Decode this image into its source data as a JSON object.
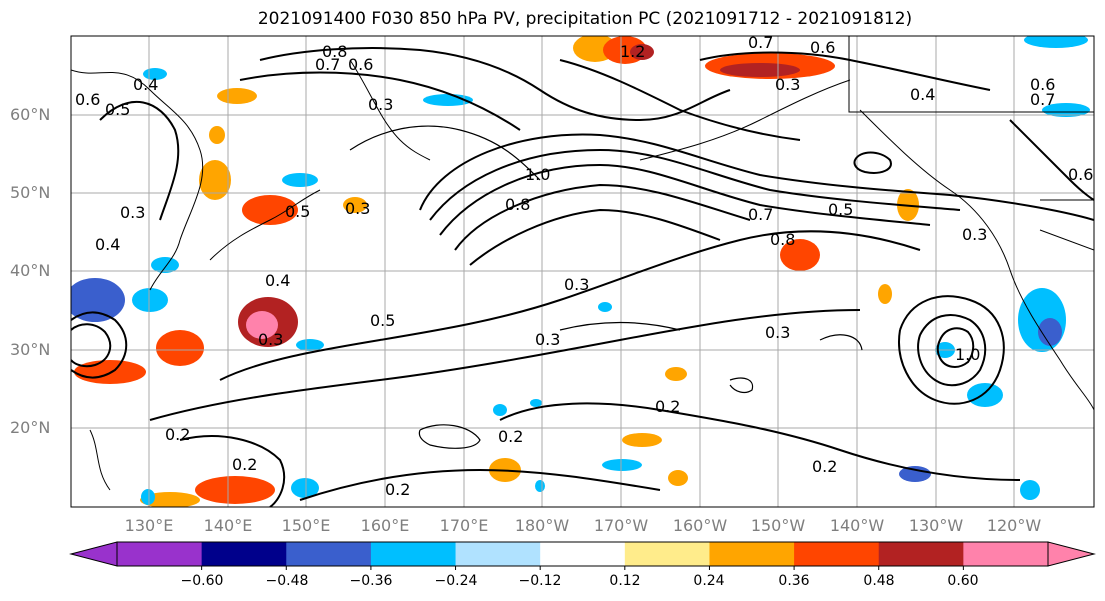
{
  "title": "2021091400 F030 850 hPa PV, precipitation PC (2021091712 - 2021091812)",
  "lat_labels": [
    "60°N",
    "50°N",
    "40°N",
    "30°N",
    "20°N"
  ],
  "lon_labels": [
    "130°E",
    "140°E",
    "150°E",
    "160°E",
    "170°E",
    "180°W",
    "170°W",
    "160°W",
    "150°W",
    "140°W",
    "130°W",
    "120°W"
  ],
  "contour_labels": [
    {
      "text": "0.8"
    },
    {
      "text": "0.7"
    },
    {
      "text": "0.6"
    },
    {
      "text": "1.2"
    },
    {
      "text": "0.7"
    },
    {
      "text": "0.6"
    },
    {
      "text": "0.3"
    },
    {
      "text": "0.3"
    },
    {
      "text": "0.4"
    },
    {
      "text": "0.6"
    },
    {
      "text": "0.5"
    },
    {
      "text": "0.4"
    },
    {
      "text": "0.8"
    },
    {
      "text": "1.0"
    },
    {
      "text": "0.7"
    },
    {
      "text": "0.5"
    },
    {
      "text": "0.3"
    },
    {
      "text": "0.5"
    },
    {
      "text": "0.3"
    },
    {
      "text": "0.8"
    },
    {
      "text": "0.4"
    },
    {
      "text": "0.3"
    },
    {
      "text": "0.5"
    },
    {
      "text": "0.3"
    },
    {
      "text": "0.3"
    },
    {
      "text": "0.3"
    },
    {
      "text": "1.0"
    },
    {
      "text": "0.2"
    },
    {
      "text": "0.2"
    },
    {
      "text": "0.2"
    },
    {
      "text": "0.2"
    },
    {
      "text": "0.2"
    },
    {
      "text": "0.2"
    },
    {
      "text": "0.4"
    },
    {
      "text": "0.3"
    },
    {
      "text": "0.6"
    },
    {
      "text": "0.6"
    },
    {
      "text": "0.7"
    }
  ],
  "colorbar": {
    "ticks": [
      "−0.60",
      "−0.48",
      "−0.36",
      "−0.24",
      "−0.12",
      "0.12",
      "0.24",
      "0.36",
      "0.48",
      "0.60"
    ],
    "colors": [
      "#9932cc",
      "#00008b",
      "#3a5fcd",
      "#00bfff",
      "#b0e2ff",
      "#ffffff",
      "#ffec8b",
      "#ffa500",
      "#ff4500",
      "#b22222",
      "#ff82ab"
    ],
    "under_color": "#9932cc",
    "over_color": "#ff82ab"
  }
}
